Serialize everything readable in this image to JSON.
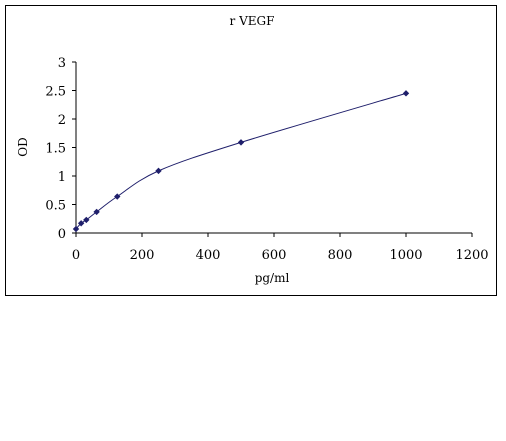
{
  "chart_data": {
    "type": "line",
    "title": "r VEGF",
    "xlabel": "pg/ml",
    "ylabel": "OD",
    "xlim": [
      0,
      1200
    ],
    "ylim": [
      0,
      3
    ],
    "x_ticks": [
      "0",
      "200",
      "400",
      "600",
      "800",
      "1000",
      "1200"
    ],
    "y_ticks": [
      "0",
      "0.5",
      "1",
      "1.5",
      "2",
      "2.5",
      "3"
    ],
    "grid": false,
    "legend": "none",
    "series_color": "#1f1f6b",
    "series": [
      {
        "marker": "diamond",
        "x": [
          0,
          15.6,
          31.25,
          62.5,
          125,
          250,
          500,
          1000
        ],
        "y": [
          0.07,
          0.17,
          0.23,
          0.37,
          0.64,
          1.09,
          1.59,
          2.45
        ]
      }
    ]
  }
}
